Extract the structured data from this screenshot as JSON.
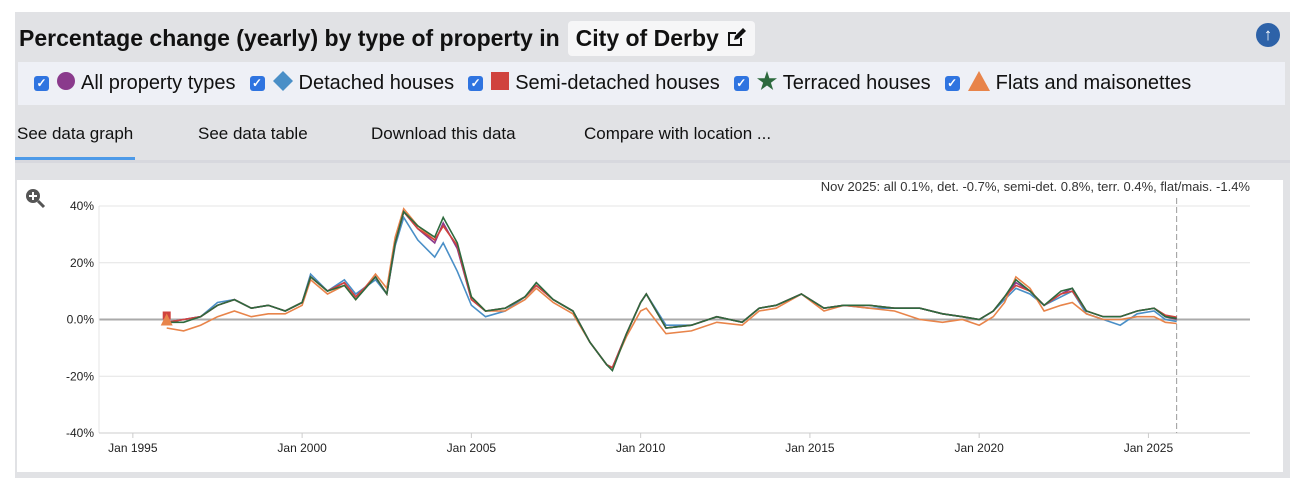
{
  "header": {
    "title": "Percentage change (yearly) by type of property in",
    "location": "City of Derby",
    "edit_icon": "edit-icon",
    "scroll_top_icon": "arrow-up-circle-icon"
  },
  "legend": [
    {
      "label": "All property types",
      "marker": "circle",
      "color": "#8a3a8c",
      "checked": true
    },
    {
      "label": "Detached houses",
      "marker": "diamond",
      "color": "#4a8fc7",
      "checked": true
    },
    {
      "label": "Semi-detached houses",
      "marker": "square",
      "color": "#d0433e",
      "checked": true
    },
    {
      "label": "Terraced houses",
      "marker": "star",
      "color": "#2d6a3e",
      "checked": true
    },
    {
      "label": "Flats and maisonettes",
      "marker": "triangle",
      "color": "#e8844a",
      "checked": true
    }
  ],
  "tabs": [
    {
      "label": "See data graph",
      "active": true
    },
    {
      "label": "See data table"
    },
    {
      "label": "Download this data"
    },
    {
      "label": "Compare with location ..."
    }
  ],
  "chart_data": {
    "type": "line",
    "annotation": "Nov 2025: all 0.1%, det. -0.7%, semi-det. 0.8%, terr. 0.4%, flat/mais. -1.4%",
    "xlabel": "",
    "ylabel": "",
    "xlim": [
      "1994-01",
      "2028-01"
    ],
    "ylim": [
      -40,
      40
    ],
    "x_ticks": [
      "Jan 1995",
      "Jan 2000",
      "Jan 2005",
      "Jan 2010",
      "Jan 2015",
      "Jan 2020",
      "Jan 2025"
    ],
    "y_ticks": [
      "40%",
      "20%",
      "0.0%",
      "-20%",
      "-40%"
    ],
    "grid": true,
    "marker_line": "2025-11",
    "x": [
      "1996-01",
      "1996-07",
      "1997-01",
      "1997-07",
      "1998-01",
      "1998-07",
      "1999-01",
      "1999-07",
      "2000-01",
      "2000-04",
      "2000-10",
      "2001-04",
      "2001-08",
      "2002-03",
      "2002-07",
      "2002-10",
      "2003-01",
      "2003-06",
      "2003-12",
      "2004-03",
      "2004-08",
      "2005-01",
      "2005-06",
      "2006-01",
      "2006-08",
      "2006-12",
      "2007-06",
      "2008-01",
      "2008-07",
      "2009-01",
      "2009-03",
      "2009-08",
      "2010-01",
      "2010-03",
      "2010-10",
      "2011-07",
      "2012-04",
      "2013-01",
      "2013-07",
      "2014-01",
      "2014-10",
      "2015-06",
      "2016-01",
      "2016-10",
      "2017-07",
      "2018-04",
      "2018-12",
      "2019-07",
      "2020-01",
      "2020-06",
      "2020-10",
      "2021-02",
      "2021-07",
      "2021-12",
      "2022-06",
      "2022-10",
      "2023-03",
      "2023-09",
      "2024-03",
      "2024-09",
      "2025-03",
      "2025-07",
      "2025-11"
    ],
    "series": [
      {
        "name": "Detached houses",
        "color": "#4a8fc7",
        "values": [
          -1,
          0,
          1,
          6,
          7,
          4,
          5,
          3,
          6,
          16,
          10,
          14,
          9,
          14,
          9,
          26,
          36,
          28,
          22,
          27,
          17,
          5,
          1,
          3,
          8,
          12,
          7,
          3,
          -8,
          -16,
          -17,
          -5,
          6,
          9,
          -2,
          -2,
          1,
          -1,
          4,
          5,
          9,
          4,
          5,
          4,
          4,
          4,
          2,
          1,
          0,
          3,
          7,
          11,
          9,
          5,
          8,
          10,
          2,
          0,
          -2,
          2,
          3,
          0,
          -0.7
        ]
      },
      {
        "name": "Flats and maisonettes",
        "color": "#e8844a",
        "values": [
          -3,
          -4,
          -2,
          1,
          3,
          1,
          2,
          2,
          5,
          14,
          9,
          12,
          7,
          16,
          11,
          29,
          39,
          33,
          28,
          33,
          26,
          8,
          3,
          3,
          7,
          11,
          6,
          2,
          -8,
          -16,
          -17,
          -6,
          3,
          4,
          -5,
          -4,
          -1,
          -2,
          3,
          4,
          9,
          3,
          5,
          4,
          3,
          0,
          -1,
          0,
          -2,
          1,
          6,
          15,
          11,
          3,
          5,
          6,
          2,
          0,
          0,
          1,
          1,
          -1,
          -1.4
        ]
      },
      {
        "name": "All property types",
        "color": "#8a3a8c",
        "values": [
          -1,
          0,
          1,
          5,
          7,
          4,
          5,
          3,
          6,
          15,
          10,
          13,
          8,
          15,
          9,
          27,
          38,
          32,
          27,
          34,
          25,
          7,
          3,
          4,
          8,
          12,
          7,
          3,
          -8,
          -16,
          -17,
          -5,
          6,
          9,
          -3,
          -2,
          1,
          -1,
          4,
          5,
          9,
          4,
          5,
          5,
          4,
          4,
          2,
          1,
          0,
          3,
          8,
          13,
          10,
          5,
          9,
          11,
          3,
          1,
          1,
          3,
          4,
          1,
          0.1
        ]
      },
      {
        "name": "Semi-detached houses",
        "color": "#d0433e",
        "values": [
          -1,
          0,
          1,
          5,
          7,
          4,
          5,
          3,
          6,
          15,
          10,
          13,
          8,
          15,
          9,
          27,
          38,
          32,
          28,
          33,
          26,
          7,
          3,
          4,
          8,
          12,
          7,
          3,
          -8,
          -16,
          -17,
          -5,
          6,
          9,
          -3,
          -2,
          1,
          -1,
          4,
          5,
          9,
          4,
          5,
          5,
          4,
          4,
          2,
          1,
          0,
          3,
          8,
          12,
          10,
          5,
          9,
          10,
          3,
          1,
          1,
          3,
          4,
          1.5,
          0.8
        ]
      },
      {
        "name": "Terraced houses",
        "color": "#2d6a3e",
        "values": [
          -1,
          -1,
          1,
          5,
          7,
          4,
          5,
          3,
          6,
          15,
          10,
          12,
          7,
          15,
          9,
          27,
          38,
          33,
          29,
          36,
          27,
          8,
          3,
          4,
          8,
          13,
          7,
          3,
          -8,
          -16,
          -18,
          -5,
          6,
          9,
          -3,
          -2,
          1,
          -1,
          4,
          5,
          9,
          4,
          5,
          5,
          4,
          4,
          2,
          1,
          0,
          3,
          8,
          14,
          10,
          5,
          10,
          11,
          3,
          1,
          1,
          3,
          4,
          1,
          0.4
        ]
      }
    ]
  }
}
